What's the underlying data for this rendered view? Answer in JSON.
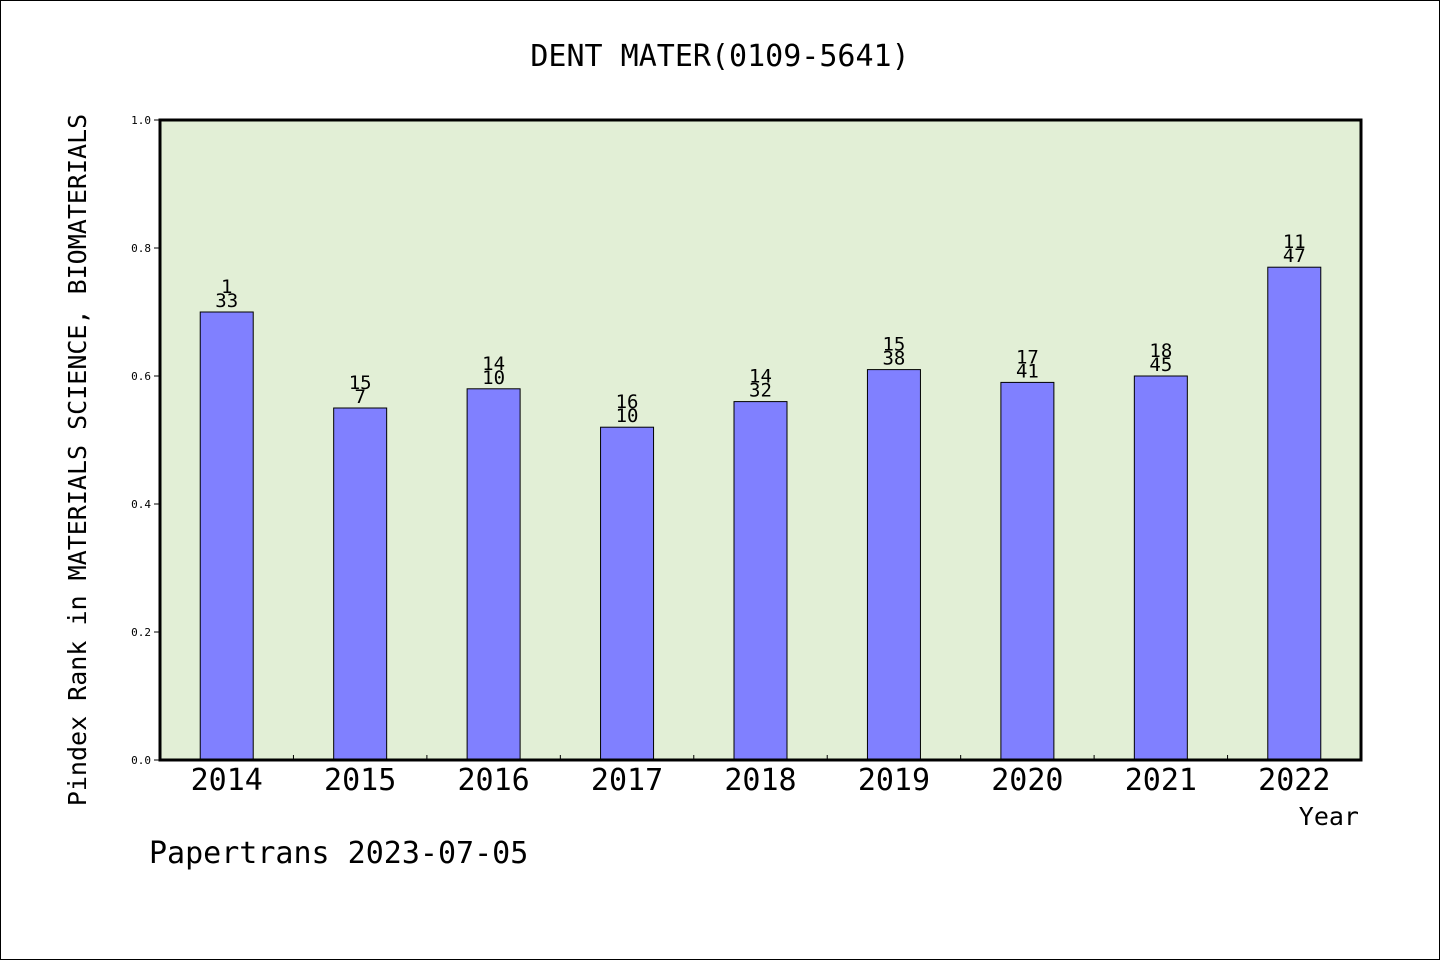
{
  "chart_data": {
    "type": "bar",
    "title": "DENT MATER(0109-5641)",
    "xlabel": "Year",
    "ylabel": "Pindex Rank in MATERIALS SCIENCE, BIOMATERIALS",
    "categories": [
      "2014",
      "2015",
      "2016",
      "2017",
      "2018",
      "2019",
      "2020",
      "2021",
      "2022"
    ],
    "values": [
      0.7,
      0.55,
      0.58,
      0.52,
      0.56,
      0.61,
      0.59,
      0.6,
      0.77
    ],
    "rank_labels": [
      "1",
      "15",
      "14",
      "16",
      "14",
      "15",
      "17",
      "18",
      "11"
    ],
    "total_labels": [
      "33",
      "7",
      "10",
      "10",
      "32",
      "38",
      "41",
      "45",
      "47"
    ],
    "yticks": [
      "0.0",
      "0.2",
      "0.4",
      "0.6",
      "0.8",
      "1.0"
    ],
    "ylim": [
      0,
      1
    ],
    "grid": false,
    "colors": {
      "plot_background": "#e2efd6",
      "bar_fill": "#8080ff",
      "bar_stroke": "#000000"
    }
  },
  "footer": {
    "source_label": "Papertrans 2023-07-05"
  }
}
